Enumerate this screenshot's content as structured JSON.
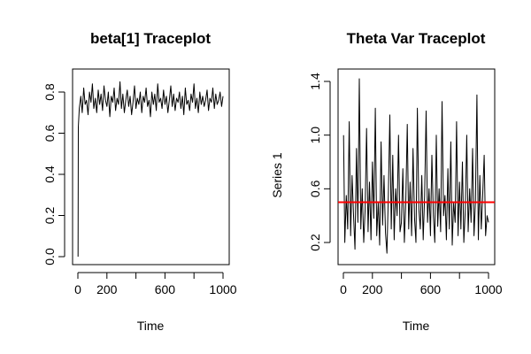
{
  "chart_data": [
    {
      "type": "line",
      "title": "beta[1] Traceplot",
      "xlabel": "Time",
      "ylabel": "",
      "xlim": [
        0,
        1000
      ],
      "ylim": [
        0,
        0.85
      ],
      "x_ticks": [
        0,
        200,
        600,
        1000
      ],
      "y_ticks": [
        0.0,
        0.2,
        0.4,
        0.6,
        0.8
      ],
      "x_tick_labels": [
        "0",
        "200",
        "600",
        "1000"
      ],
      "y_tick_labels": [
        "0.0",
        "0.2",
        "0.4",
        "0.6",
        "0.8"
      ],
      "grid": false,
      "series": [
        {
          "color": "#000000",
          "x": [
            1,
            3,
            10,
            20,
            30,
            40,
            50,
            60,
            70,
            80,
            90,
            100,
            110,
            120,
            130,
            140,
            150,
            160,
            170,
            180,
            190,
            200,
            210,
            220,
            230,
            240,
            250,
            260,
            270,
            280,
            290,
            300,
            310,
            320,
            330,
            340,
            350,
            360,
            370,
            380,
            390,
            400,
            410,
            420,
            430,
            440,
            450,
            460,
            470,
            480,
            490,
            500,
            510,
            520,
            530,
            540,
            550,
            560,
            570,
            580,
            590,
            600,
            610,
            620,
            630,
            640,
            650,
            660,
            670,
            680,
            690,
            700,
            710,
            720,
            730,
            740,
            750,
            760,
            770,
            780,
            790,
            800,
            810,
            820,
            830,
            840,
            850,
            860,
            870,
            880,
            890,
            900,
            910,
            920,
            930,
            940,
            950,
            960,
            970,
            980,
            990,
            1000
          ],
          "y": [
            0.0,
            0.63,
            0.72,
            0.78,
            0.7,
            0.82,
            0.74,
            0.76,
            0.69,
            0.8,
            0.75,
            0.84,
            0.72,
            0.77,
            0.7,
            0.81,
            0.74,
            0.79,
            0.71,
            0.83,
            0.76,
            0.73,
            0.8,
            0.68,
            0.78,
            0.75,
            0.82,
            0.71,
            0.77,
            0.74,
            0.85,
            0.72,
            0.79,
            0.7,
            0.76,
            0.81,
            0.73,
            0.78,
            0.69,
            0.75,
            0.83,
            0.72,
            0.77,
            0.74,
            0.8,
            0.7,
            0.78,
            0.75,
            0.82,
            0.73,
            0.76,
            0.68,
            0.8,
            0.74,
            0.79,
            0.71,
            0.84,
            0.75,
            0.77,
            0.72,
            0.81,
            0.74,
            0.78,
            0.7,
            0.76,
            0.83,
            0.73,
            0.79,
            0.71,
            0.77,
            0.75,
            0.8,
            0.72,
            0.78,
            0.69,
            0.82,
            0.74,
            0.76,
            0.71,
            0.79,
            0.75,
            0.84,
            0.72,
            0.77,
            0.7,
            0.8,
            0.74,
            0.78,
            0.73,
            0.76,
            0.81,
            0.71,
            0.77,
            0.75,
            0.82,
            0.72,
            0.79,
            0.74,
            0.76,
            0.8,
            0.73,
            0.78
          ]
        }
      ]
    },
    {
      "type": "line",
      "title": "Theta Var Traceplot",
      "xlabel": "Time",
      "ylabel": "Series 1",
      "xlim": [
        0,
        1000
      ],
      "ylim": [
        0.1,
        1.45
      ],
      "x_ticks": [
        0,
        200,
        600,
        1000
      ],
      "y_ticks": [
        0.2,
        0.6,
        1.0,
        1.4
      ],
      "x_tick_labels": [
        "0",
        "200",
        "600",
        "1000"
      ],
      "y_tick_labels": [
        "0.2",
        "0.6",
        "1.0",
        "1.4"
      ],
      "grid": false,
      "reference_line": {
        "y": 0.5,
        "color": "#ff0000"
      },
      "series": [
        {
          "color": "#000000",
          "x": [
            1,
            10,
            20,
            30,
            40,
            50,
            60,
            70,
            80,
            90,
            100,
            110,
            120,
            130,
            140,
            150,
            160,
            170,
            180,
            190,
            200,
            210,
            220,
            230,
            240,
            250,
            260,
            270,
            280,
            290,
            300,
            310,
            320,
            330,
            340,
            350,
            360,
            370,
            380,
            390,
            400,
            410,
            420,
            430,
            440,
            450,
            460,
            470,
            480,
            490,
            500,
            510,
            520,
            530,
            540,
            550,
            560,
            570,
            580,
            590,
            600,
            610,
            620,
            630,
            640,
            650,
            660,
            670,
            680,
            690,
            700,
            710,
            720,
            730,
            740,
            750,
            760,
            770,
            780,
            790,
            800,
            810,
            820,
            830,
            840,
            850,
            860,
            870,
            880,
            890,
            900,
            910,
            920,
            930,
            940,
            950,
            960,
            970,
            980,
            990,
            1000
          ],
          "y": [
            1.0,
            0.2,
            0.55,
            0.3,
            1.1,
            0.25,
            0.7,
            0.4,
            0.15,
            0.9,
            0.35,
            1.42,
            0.3,
            0.6,
            0.2,
            0.45,
            1.05,
            0.28,
            0.65,
            0.22,
            0.8,
            0.38,
            1.2,
            0.25,
            0.5,
            0.18,
            0.95,
            0.33,
            0.7,
            0.27,
            0.12,
            0.55,
            1.15,
            0.3,
            0.85,
            0.22,
            0.6,
            0.4,
            1.0,
            0.28,
            0.35,
            0.75,
            0.2,
            0.5,
            1.08,
            0.3,
            0.65,
            0.25,
            0.9,
            0.38,
            0.2,
            1.2,
            0.45,
            0.3,
            0.7,
            0.22,
            0.55,
            1.18,
            0.35,
            0.6,
            0.25,
            0.85,
            0.4,
            0.2,
            1.0,
            0.32,
            0.6,
            0.28,
            1.25,
            0.4,
            0.55,
            0.22,
            0.75,
            0.3,
            0.95,
            0.18,
            0.5,
            0.35,
            1.1,
            0.25,
            0.65,
            0.3,
            0.8,
            0.2,
            0.45,
            1.0,
            0.28,
            0.6,
            0.35,
            0.9,
            0.25,
            0.5,
            1.3,
            0.22,
            0.7,
            0.3,
            0.55,
            0.85,
            0.25,
            0.4,
            0.35
          ]
        }
      ]
    }
  ]
}
